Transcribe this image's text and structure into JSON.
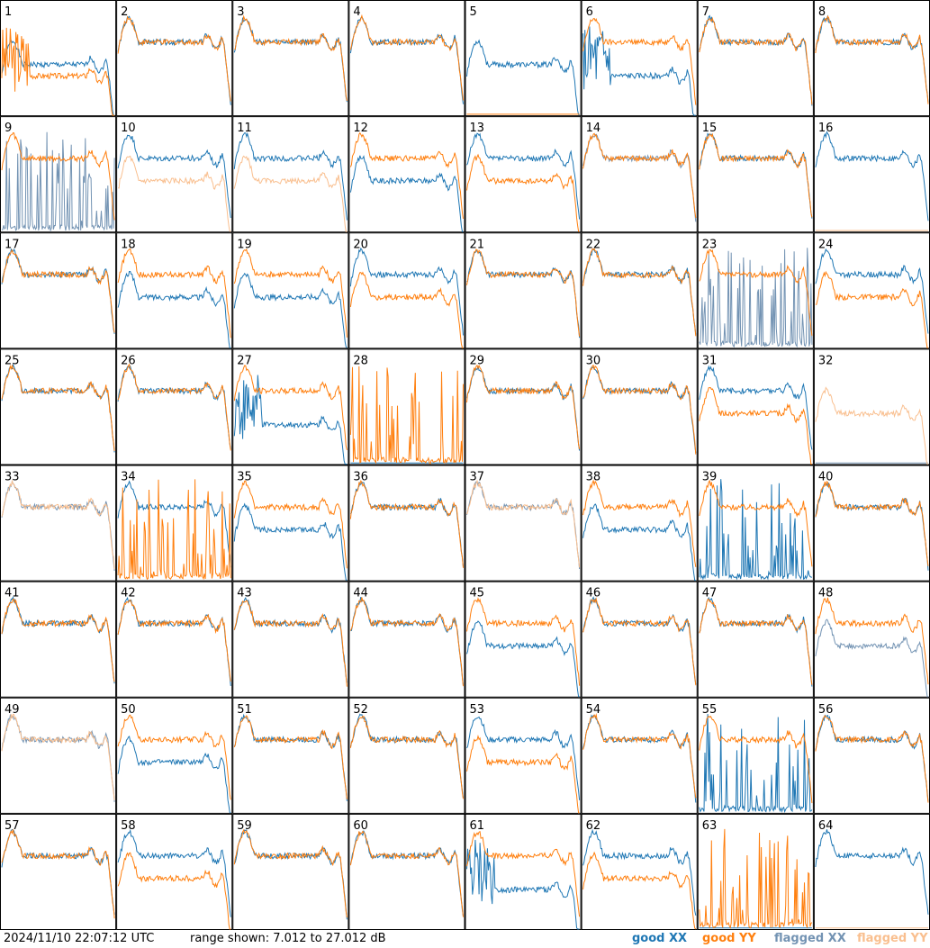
{
  "footer": {
    "timestamp": "2024/11/10 22:07:12 UTC",
    "range_text": "range shown: 7.012 to 27.012 dB"
  },
  "legend": {
    "good_xx": "good XX",
    "good_yy": "good YY",
    "flagged_xx": "flagged XX",
    "flagged_yy": "flagged YY"
  },
  "colors": {
    "good_xx": "#1f77b4",
    "good_yy": "#ff7f0e",
    "flagged_xx": "#7393b3",
    "flagged_yy": "#f9bf8f",
    "frame": "#000000"
  },
  "chart_data": {
    "type": "line",
    "grid_layout": "8x8 small multiples",
    "ylim_db": [
      7.012,
      27.012
    ],
    "panels": [
      {
        "label": "1",
        "xx": "good",
        "yy": "good",
        "xx_level": "mid",
        "yy_level": "low-noisy"
      },
      {
        "label": "2",
        "xx": "good",
        "yy": "good",
        "xx_level": "high",
        "yy_level": "high"
      },
      {
        "label": "3",
        "xx": "good",
        "yy": "good",
        "xx_level": "high",
        "yy_level": "high"
      },
      {
        "label": "4",
        "xx": "good",
        "yy": "good",
        "xx_level": "high",
        "yy_level": "high"
      },
      {
        "label": "5",
        "xx": "good",
        "yy": "good",
        "xx_level": "mid",
        "yy_level": "flat-zero"
      },
      {
        "label": "6",
        "xx": "good",
        "yy": "good",
        "xx_level": "low-noisy",
        "yy_level": "high"
      },
      {
        "label": "7",
        "xx": "good",
        "yy": "good",
        "xx_level": "high",
        "yy_level": "high"
      },
      {
        "label": "8",
        "xx": "good",
        "yy": "good",
        "xx_level": "high",
        "yy_level": "high"
      },
      {
        "label": "9",
        "xx": "flagged",
        "yy": "good",
        "xx_level": "spiky-low",
        "yy_level": "high"
      },
      {
        "label": "10",
        "xx": "good",
        "yy": "flagged",
        "xx_level": "high",
        "yy_level": "mid"
      },
      {
        "label": "11",
        "xx": "good",
        "yy": "flagged",
        "xx_level": "high",
        "yy_level": "mid"
      },
      {
        "label": "12",
        "xx": "good",
        "yy": "good",
        "xx_level": "mid",
        "yy_level": "high"
      },
      {
        "label": "13",
        "xx": "good",
        "yy": "good",
        "xx_level": "high",
        "yy_level": "mid"
      },
      {
        "label": "14",
        "xx": "flagged",
        "yy": "good",
        "xx_level": "high",
        "yy_level": "high"
      },
      {
        "label": "15",
        "xx": "good",
        "yy": "good",
        "xx_level": "high",
        "yy_level": "high"
      },
      {
        "label": "16",
        "xx": "good",
        "yy": "flagged",
        "xx_level": "high",
        "yy_level": "flat-zero"
      },
      {
        "label": "17",
        "xx": "good",
        "yy": "good",
        "xx_level": "high",
        "yy_level": "high"
      },
      {
        "label": "18",
        "xx": "good",
        "yy": "good",
        "xx_level": "mid",
        "yy_level": "high"
      },
      {
        "label": "19",
        "xx": "good",
        "yy": "good",
        "xx_level": "mid",
        "yy_level": "high"
      },
      {
        "label": "20",
        "xx": "good",
        "yy": "good",
        "xx_level": "high",
        "yy_level": "mid"
      },
      {
        "label": "21",
        "xx": "good",
        "yy": "good",
        "xx_level": "high",
        "yy_level": "high"
      },
      {
        "label": "22",
        "xx": "good",
        "yy": "good",
        "xx_level": "high",
        "yy_level": "high"
      },
      {
        "label": "23",
        "xx": "flagged",
        "yy": "good",
        "xx_level": "spiky-low",
        "yy_level": "high"
      },
      {
        "label": "24",
        "xx": "good",
        "yy": "good",
        "xx_level": "high",
        "yy_level": "mid"
      },
      {
        "label": "25",
        "xx": "good",
        "yy": "good",
        "xx_level": "high",
        "yy_level": "high"
      },
      {
        "label": "26",
        "xx": "good",
        "yy": "good",
        "xx_level": "high",
        "yy_level": "high"
      },
      {
        "label": "27",
        "xx": "good",
        "yy": "good",
        "xx_level": "low-noisy",
        "yy_level": "high"
      },
      {
        "label": "28",
        "xx": "good",
        "yy": "good",
        "xx_level": "flat-zero",
        "yy_level": "spiky-low"
      },
      {
        "label": "29",
        "xx": "good",
        "yy": "good",
        "xx_level": "high",
        "yy_level": "high"
      },
      {
        "label": "30",
        "xx": "good",
        "yy": "good",
        "xx_level": "high",
        "yy_level": "high"
      },
      {
        "label": "31",
        "xx": "good",
        "yy": "good",
        "xx_level": "high",
        "yy_level": "mid"
      },
      {
        "label": "32",
        "xx": "flagged",
        "yy": "flagged",
        "xx_level": "flat-zero",
        "yy_level": "mid"
      },
      {
        "label": "33",
        "xx": "flagged",
        "yy": "flagged",
        "xx_level": "high",
        "yy_level": "high"
      },
      {
        "label": "34",
        "xx": "good",
        "yy": "good",
        "xx_level": "high",
        "yy_level": "spiky-low"
      },
      {
        "label": "35",
        "xx": "good",
        "yy": "good",
        "xx_level": "mid",
        "yy_level": "high"
      },
      {
        "label": "36",
        "xx": "good",
        "yy": "good",
        "xx_level": "high",
        "yy_level": "high"
      },
      {
        "label": "37",
        "xx": "flagged",
        "yy": "flagged",
        "xx_level": "high",
        "yy_level": "high"
      },
      {
        "label": "38",
        "xx": "good",
        "yy": "good",
        "xx_level": "mid",
        "yy_level": "high"
      },
      {
        "label": "39",
        "xx": "good",
        "yy": "good",
        "xx_level": "spiky-low",
        "yy_level": "high"
      },
      {
        "label": "40",
        "xx": "good",
        "yy": "good",
        "xx_level": "high",
        "yy_level": "high"
      },
      {
        "label": "41",
        "xx": "good",
        "yy": "good",
        "xx_level": "high",
        "yy_level": "high"
      },
      {
        "label": "42",
        "xx": "good",
        "yy": "good",
        "xx_level": "high",
        "yy_level": "high"
      },
      {
        "label": "43",
        "xx": "good",
        "yy": "good",
        "xx_level": "high",
        "yy_level": "high"
      },
      {
        "label": "44",
        "xx": "good",
        "yy": "good",
        "xx_level": "high",
        "yy_level": "high"
      },
      {
        "label": "45",
        "xx": "good",
        "yy": "good",
        "xx_level": "mid",
        "yy_level": "high"
      },
      {
        "label": "46",
        "xx": "good",
        "yy": "good",
        "xx_level": "high",
        "yy_level": "high"
      },
      {
        "label": "47",
        "xx": "good",
        "yy": "good",
        "xx_level": "high",
        "yy_level": "high"
      },
      {
        "label": "48",
        "xx": "flagged",
        "yy": "good",
        "xx_level": "mid",
        "yy_level": "high"
      },
      {
        "label": "49",
        "xx": "flagged",
        "yy": "flagged",
        "xx_level": "high",
        "yy_level": "high"
      },
      {
        "label": "50",
        "xx": "good",
        "yy": "good",
        "xx_level": "mid",
        "yy_level": "high"
      },
      {
        "label": "51",
        "xx": "good",
        "yy": "good",
        "xx_level": "high",
        "yy_level": "high"
      },
      {
        "label": "52",
        "xx": "good",
        "yy": "good",
        "xx_level": "high",
        "yy_level": "high"
      },
      {
        "label": "53",
        "xx": "good",
        "yy": "good",
        "xx_level": "high",
        "yy_level": "mid"
      },
      {
        "label": "54",
        "xx": "good",
        "yy": "good",
        "xx_level": "high",
        "yy_level": "high"
      },
      {
        "label": "55",
        "xx": "good",
        "yy": "good",
        "xx_level": "spiky-low",
        "yy_level": "high"
      },
      {
        "label": "56",
        "xx": "good",
        "yy": "good",
        "xx_level": "high",
        "yy_level": "high"
      },
      {
        "label": "57",
        "xx": "good",
        "yy": "good",
        "xx_level": "high",
        "yy_level": "high"
      },
      {
        "label": "58",
        "xx": "good",
        "yy": "good",
        "xx_level": "high",
        "yy_level": "mid"
      },
      {
        "label": "59",
        "xx": "good",
        "yy": "good",
        "xx_level": "high",
        "yy_level": "high"
      },
      {
        "label": "60",
        "xx": "good",
        "yy": "good",
        "xx_level": "high",
        "yy_level": "high"
      },
      {
        "label": "61",
        "xx": "good",
        "yy": "good",
        "xx_level": "low-noisy",
        "yy_level": "high"
      },
      {
        "label": "62",
        "xx": "good",
        "yy": "good",
        "xx_level": "high",
        "yy_level": "mid"
      },
      {
        "label": "63",
        "xx": "good",
        "yy": "good",
        "xx_level": "flat-zero",
        "yy_level": "spiky-low"
      },
      {
        "label": "64",
        "xx": "good",
        "yy": "flagged",
        "xx_level": "high",
        "yy_level": "flat-zero"
      }
    ]
  }
}
